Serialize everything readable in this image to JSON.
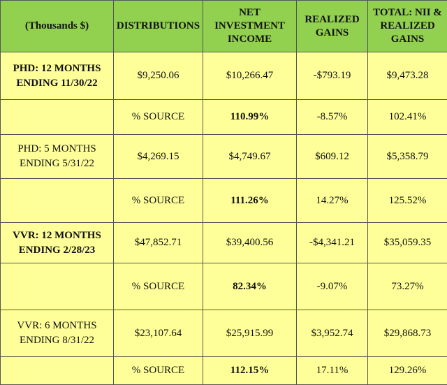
{
  "headers": {
    "col0": "(Thousands $)",
    "col1": "DISTRIBUTIONS",
    "col2_line1": "NET",
    "col2_line2": "INVESTMENT",
    "col2_line3": "INCOME",
    "col3_line1": "REALIZED",
    "col3_line2": "GAINS",
    "col4_line1": "TOTAL: NII &",
    "col4_line2": "REALIZED",
    "col4_line3": "GAINS"
  },
  "groups": [
    {
      "label_line1": "PHD: 12 MONTHS",
      "label_line2": "ENDING 11/30/22",
      "distributions": "$9,250.06",
      "nii": "$10,266.47",
      "realized": "-$793.19",
      "total": "$9,473.28",
      "source_label": "% SOURCE",
      "nii_pct": "110.99%",
      "realized_pct": "-8.57%",
      "total_pct": "102.41%"
    },
    {
      "label_line1": "PHD: 5 MONTHS",
      "label_line2": "ENDING 5/31/22",
      "distributions": "$4,269.15",
      "nii": "$4,749.67",
      "realized": "$609.12",
      "total": "$5,358.79",
      "source_label": "% SOURCE",
      "nii_pct": "111.26%",
      "realized_pct": "14.27%",
      "total_pct": "125.52%"
    },
    {
      "label_line1": "VVR: 12 MONTHS",
      "label_line2": "ENDING 2/28/23",
      "distributions": "$47,852.71",
      "nii": "$39,400.56",
      "realized": "-$4,341.21",
      "total": "$35,059.35",
      "source_label": "% SOURCE",
      "nii_pct": "82.34%",
      "realized_pct": "-9.07%",
      "total_pct": "73.27%"
    },
    {
      "label_line1": "VVR: 6 MONTHS",
      "label_line2": "ENDING 8/31/22",
      "distributions": "$23,107.64",
      "nii": "$25,915.99",
      "realized": "$3,952.74",
      "total": "$29,868.73",
      "source_label": "% SOURCE",
      "nii_pct": "112.15%",
      "realized_pct": "17.11%",
      "total_pct": "129.26%"
    }
  ]
}
